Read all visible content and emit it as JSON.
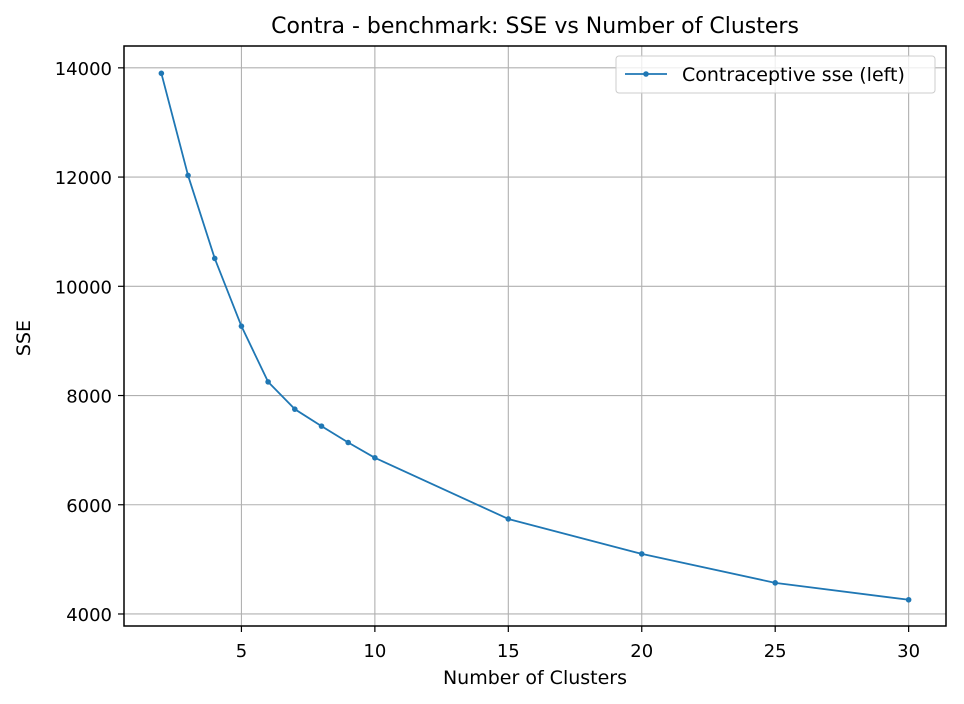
{
  "chart_data": {
    "type": "line",
    "title": "Contra - benchmark: SSE vs Number of Clusters",
    "xlabel": "Number of Clusters",
    "ylabel": "SSE",
    "xlim": [
      0.6,
      31.4
    ],
    "ylim": [
      3780,
      14400
    ],
    "x_ticks": [
      5,
      10,
      15,
      20,
      25,
      30
    ],
    "y_ticks": [
      4000,
      6000,
      8000,
      10000,
      12000,
      14000
    ],
    "grid": true,
    "legend_position": "top-right",
    "series": [
      {
        "name": "Contraceptive sse (left)",
        "color": "#1f77b4",
        "marker": "dot",
        "x": [
          2,
          3,
          4,
          5,
          6,
          7,
          8,
          9,
          10,
          15,
          20,
          25,
          30
        ],
        "y": [
          13900,
          12030,
          10510,
          9270,
          8250,
          7750,
          7440,
          7140,
          6860,
          5740,
          5100,
          4570,
          4260
        ]
      }
    ]
  }
}
